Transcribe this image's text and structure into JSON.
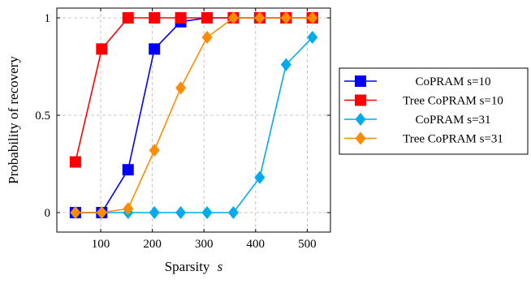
{
  "chart_data": {
    "type": "line",
    "title": "",
    "xlabel": "Sparsity",
    "xlabel_var": "s",
    "ylabel": "Probability of recovery",
    "xlim": [
      15,
      545
    ],
    "ylim": [
      -0.1,
      1.05
    ],
    "xticks": [
      100,
      200,
      300,
      400,
      500
    ],
    "xtick_labels": [
      "100",
      "200",
      "300",
      "400",
      "500"
    ],
    "yticks": [
      0,
      0.5,
      1
    ],
    "ytick_labels": [
      "0",
      "0.5",
      "1"
    ],
    "grid": true,
    "legend_position": "right-outside",
    "x": [
      51,
      102,
      153,
      204,
      255,
      306,
      357,
      408,
      459,
      510
    ],
    "series": [
      {
        "name": "CoPRAM s=10",
        "color": "#0000ff",
        "marker": "square",
        "values": [
          0,
          0,
          0.22,
          0.84,
          0.98,
          1,
          1,
          1,
          1,
          1
        ]
      },
      {
        "name": "Tree CoPRAM s=10",
        "color": "#ff0000",
        "marker": "square",
        "values": [
          0.26,
          0.84,
          1,
          1,
          1,
          1,
          1,
          1,
          1,
          1
        ]
      },
      {
        "name": "CoPRAM s=31",
        "color": "#00aaee",
        "marker": "diamond",
        "values": [
          0,
          0,
          0,
          0,
          0,
          0,
          0,
          0.18,
          0.76,
          0.9
        ]
      },
      {
        "name": "Tree CoPRAM s=31",
        "color": "#ff8c00",
        "marker": "diamond",
        "values": [
          0,
          0,
          0.02,
          0.32,
          0.64,
          0.9,
          1,
          1,
          1,
          1
        ]
      }
    ]
  }
}
